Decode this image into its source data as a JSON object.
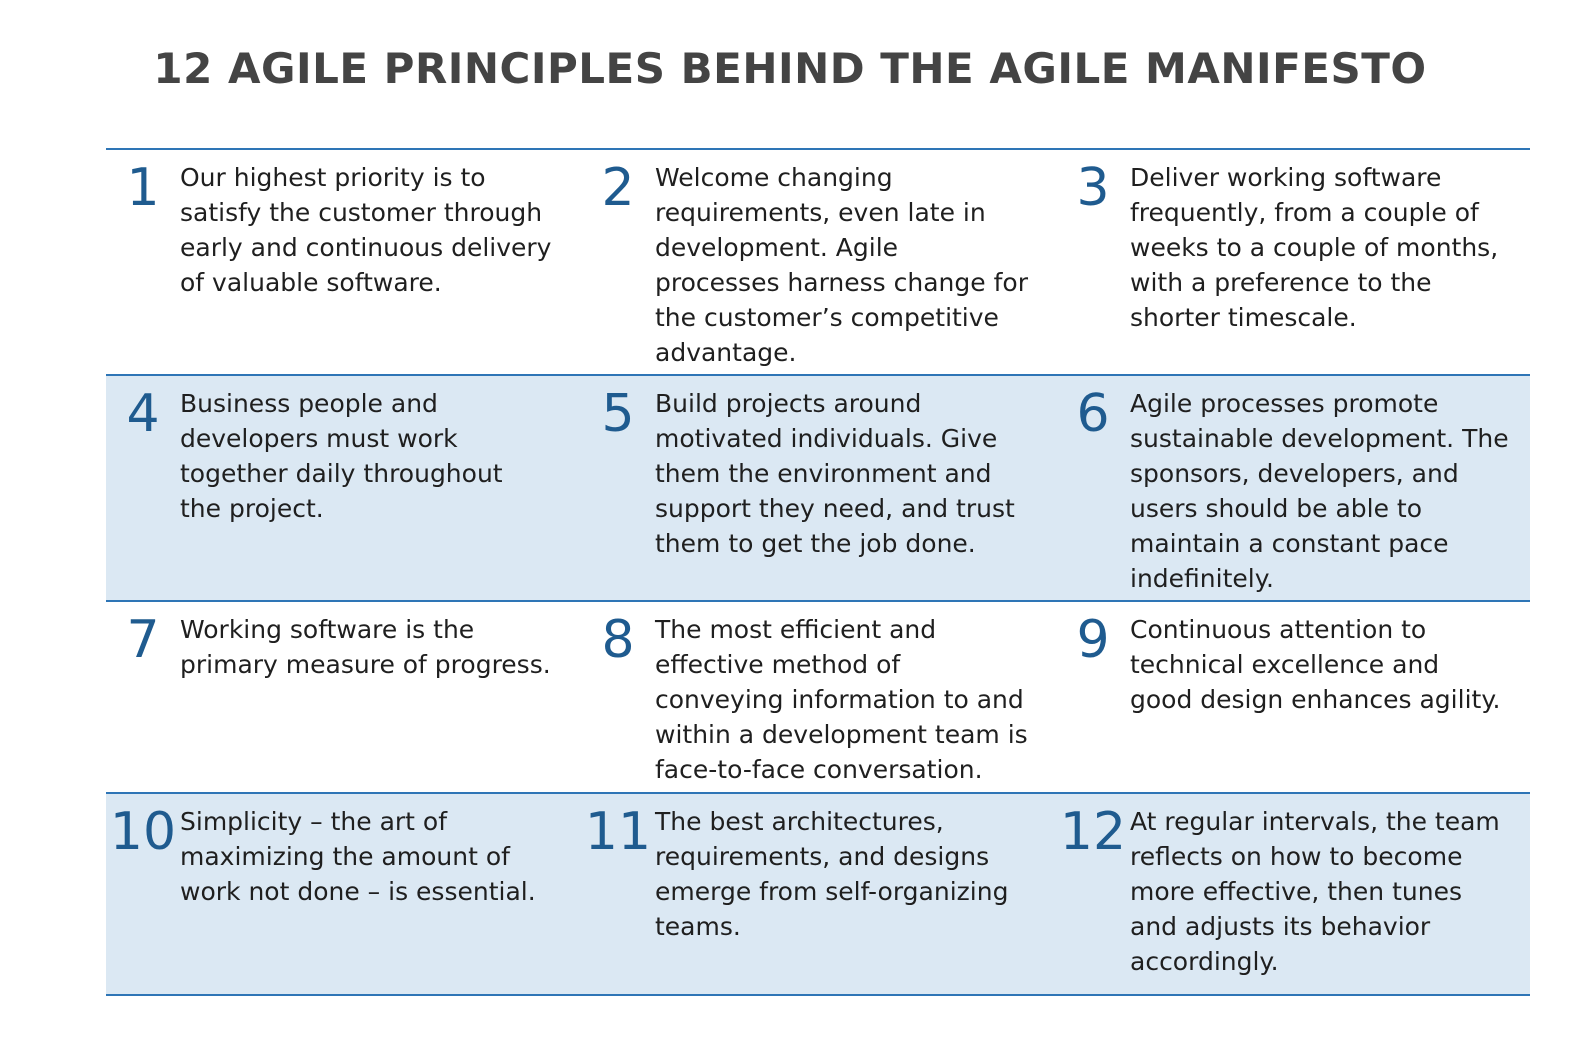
{
  "title": "12 AGILE PRINCIPLES BEHIND THE AGILE MANIFESTO",
  "colors": {
    "accent_border": "#2e75b6",
    "number": "#1f5b8f",
    "shaded_row": "#dbe8f3",
    "title_text": "#444444"
  },
  "principles": [
    {
      "number": "1",
      "text": "Our highest priority is to\nsatisfy the customer through\nearly and continuous delivery\nof valuable software."
    },
    {
      "number": "2",
      "text": "Welcome changing\nrequirements, even late in\ndevelopment.  Agile\nprocesses harness change for\nthe customer’s competitive\nadvantage."
    },
    {
      "number": "3",
      "text": "Deliver working software\nfrequently, from a couple of\nweeks to a couple of months,\nwith a preference to the\nshorter timescale."
    },
    {
      "number": "4",
      "text": "Business people and\ndevelopers must work\ntogether daily throughout\nthe project."
    },
    {
      "number": "5",
      "text": "Build projects around\nmotivated individuals. Give\nthem the environment and\nsupport they need, and trust\nthem to get the job done."
    },
    {
      "number": "6",
      "text": "Agile processes promote\nsustainable development. The\nsponsors, developers, and\nusers should be able to\nmaintain a constant pace\nindefinitely."
    },
    {
      "number": "7",
      "text": "Working software is the\nprimary measure of progress."
    },
    {
      "number": "8",
      "text": "The most efficient and\neffective method of\nconveying information to and\nwithin a development team is\nface-to-face conversation."
    },
    {
      "number": "9",
      "text": "Continuous attention to\ntechnical excellence and\ngood design enhances agility."
    },
    {
      "number": "10",
      "text": "Simplicity – the art of\nmaximizing the amount of\nwork not done – is essential."
    },
    {
      "number": "11",
      "text": "The best architectures,\nrequirements, and designs\nemerge from self-organizing\nteams."
    },
    {
      "number": "12",
      "text": "At regular intervals, the team\nreflects on how to become\nmore effective, then tunes\nand adjusts its behavior\naccordingly."
    }
  ]
}
